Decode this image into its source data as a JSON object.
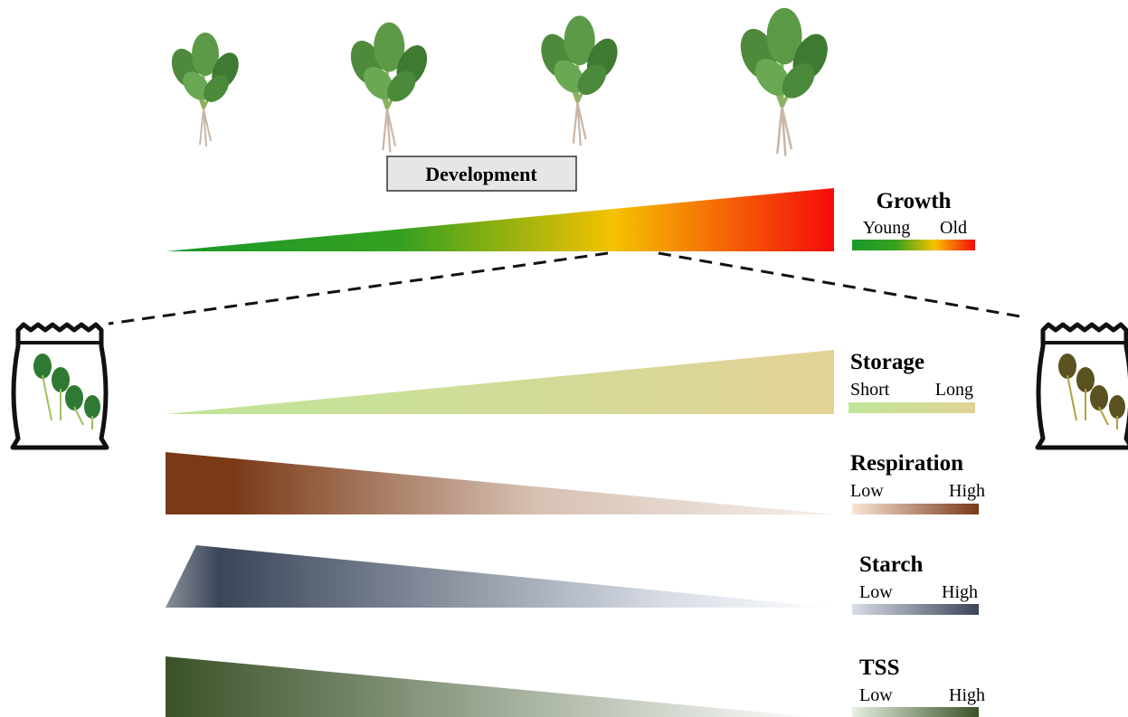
{
  "development_label": "Development",
  "gradients": [
    {
      "title": "Growth",
      "low_label": "Young",
      "high_label": "Old"
    },
    {
      "title": "Storage",
      "low_label": "Short",
      "high_label": "Long"
    },
    {
      "title": "Respiration",
      "low_label": "Low",
      "high_label": "High"
    },
    {
      "title": "Starch",
      "low_label": "Low",
      "high_label": "High"
    },
    {
      "title": "TSS",
      "low_label": "Low",
      "high_label": "High"
    }
  ]
}
